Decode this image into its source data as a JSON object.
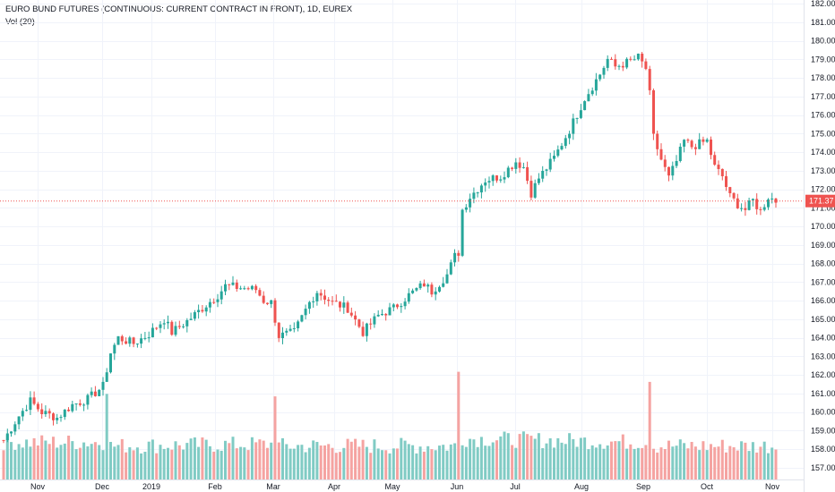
{
  "legend": {
    "title": "EURO BUND FUTURES (CONTINUOUS: CURRENT CONTRACT IN FRONT), 1D, EUREX",
    "volume": "Vol (20)"
  },
  "colors": {
    "up": "#26a69a",
    "down": "#ef5350",
    "vol_up": "#80cbc4",
    "vol_down": "#f5a3a1",
    "grid": "#f0f3fa",
    "last_price_line": "#ef5350",
    "axis_text": "#131722"
  },
  "chart_data": {
    "type": "candlestick",
    "title": "EURO BUND FUTURES (CONTINUOUS: CURRENT CONTRACT IN FRONT), 1D, EUREX",
    "timeframe": "1D",
    "exchange": "EUREX",
    "ylim": [
      156.3,
      182.2
    ],
    "y_ticks": [
      157,
      158,
      159,
      160,
      161,
      162,
      163,
      164,
      165,
      166,
      167,
      168,
      169,
      170,
      171,
      172,
      173,
      174,
      175,
      176,
      177,
      178,
      179,
      180,
      181,
      182
    ],
    "x_ticks": [
      "Nov",
      "Dec",
      "2019",
      "Feb",
      "Mar",
      "Apr",
      "May",
      "Jun",
      "Jul",
      "Aug",
      "Sep",
      "Oct",
      "Nov"
    ],
    "last_price": 171.37,
    "grid": true,
    "price_path": [
      [
        0,
        158.5
      ],
      [
        4,
        159.8
      ],
      [
        7,
        160.6
      ],
      [
        10,
        160.0
      ],
      [
        14,
        159.7
      ],
      [
        18,
        160.4
      ],
      [
        22,
        160.7
      ],
      [
        26,
        161.4
      ],
      [
        28,
        163.2
      ],
      [
        30,
        164.0
      ],
      [
        34,
        163.7
      ],
      [
        38,
        164.2
      ],
      [
        42,
        165.0
      ],
      [
        44,
        164.3
      ],
      [
        48,
        164.9
      ],
      [
        52,
        165.6
      ],
      [
        56,
        166.3
      ],
      [
        58,
        166.8
      ],
      [
        62,
        166.7
      ],
      [
        66,
        166.6
      ],
      [
        68,
        166.0
      ],
      [
        70,
        165.9
      ],
      [
        72,
        164.1
      ],
      [
        76,
        164.3
      ],
      [
        80,
        165.9
      ],
      [
        82,
        166.5
      ],
      [
        86,
        165.9
      ],
      [
        90,
        165.6
      ],
      [
        94,
        164.3
      ],
      [
        98,
        165.2
      ],
      [
        102,
        165.6
      ],
      [
        106,
        166.3
      ],
      [
        110,
        166.9
      ],
      [
        112,
        166.5
      ],
      [
        116,
        167.4
      ],
      [
        118,
        168.4
      ],
      [
        119,
        168.6
      ],
      [
        120,
        170.9
      ],
      [
        122,
        171.6
      ],
      [
        126,
        172.5
      ],
      [
        130,
        172.7
      ],
      [
        134,
        173.5
      ],
      [
        136,
        173.2
      ],
      [
        138,
        171.8
      ],
      [
        140,
        172.6
      ],
      [
        144,
        173.7
      ],
      [
        148,
        175.2
      ],
      [
        152,
        176.9
      ],
      [
        156,
        178.2
      ],
      [
        158,
        179.0
      ],
      [
        160,
        178.6
      ],
      [
        164,
        178.9
      ],
      [
        166,
        179.1
      ],
      [
        168,
        178.5
      ],
      [
        169,
        177.1
      ],
      [
        170,
        174.8
      ],
      [
        172,
        173.6
      ],
      [
        174,
        172.6
      ],
      [
        176,
        173.5
      ],
      [
        178,
        174.6
      ],
      [
        180,
        174.3
      ],
      [
        184,
        174.6
      ],
      [
        186,
        173.2
      ],
      [
        188,
        172.7
      ],
      [
        190,
        171.6
      ],
      [
        192,
        171.2
      ],
      [
        194,
        170.9
      ],
      [
        196,
        171.4
      ],
      [
        198,
        170.8
      ],
      [
        200,
        171.6
      ],
      [
        202,
        171.37
      ]
    ],
    "volume_path": [
      [
        0,
        158.2
      ],
      [
        26,
        158.2
      ],
      [
        27,
        161.2
      ],
      [
        28,
        158.0
      ],
      [
        70,
        158.1
      ],
      [
        71,
        161.0
      ],
      [
        72,
        158.0
      ],
      [
        118,
        158.0
      ],
      [
        119,
        162.0
      ],
      [
        120,
        158.4
      ],
      [
        168,
        158.2
      ],
      [
        169,
        161.8
      ],
      [
        170,
        158.0
      ],
      [
        202,
        158.0
      ]
    ]
  }
}
